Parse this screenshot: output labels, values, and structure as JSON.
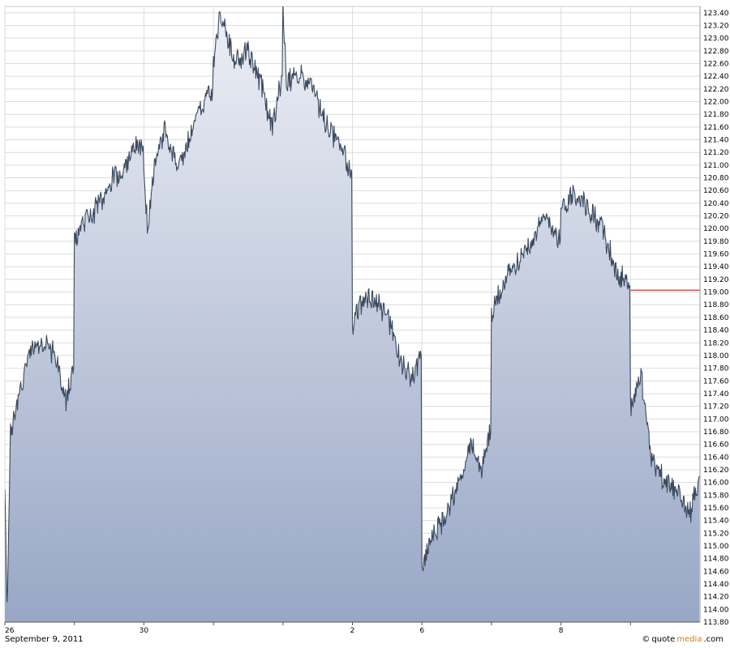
{
  "chart_data": {
    "type": "area",
    "title": "",
    "xlabel": "",
    "ylabel": "",
    "ylim": [
      113.8,
      123.5
    ],
    "y_ticks": [
      "123.40",
      "123.20",
      "123.00",
      "122.80",
      "122.60",
      "122.40",
      "122.20",
      "122.00",
      "121.80",
      "121.60",
      "121.40",
      "121.20",
      "121.00",
      "120.80",
      "120.60",
      "120.40",
      "120.20",
      "120.00",
      "119.80",
      "119.60",
      "119.40",
      "119.20",
      "119.00",
      "118.80",
      "118.60",
      "118.40",
      "118.20",
      "118.00",
      "117.80",
      "117.60",
      "117.40",
      "117.20",
      "117.00",
      "116.80",
      "116.60",
      "116.40",
      "116.20",
      "116.00",
      "115.80",
      "115.60",
      "115.40",
      "115.20",
      "115.00",
      "114.80",
      "114.60",
      "114.40",
      "114.20",
      "114.00",
      "113.80"
    ],
    "x_tick_labels": [
      "26",
      "",
      "30",
      "",
      "",
      "2",
      "6",
      "",
      "8",
      ""
    ],
    "x_tick_sessions": [
      0,
      1,
      2,
      3,
      4,
      5,
      6,
      7,
      8,
      9
    ],
    "sessions": 10,
    "reference_level": 119.03,
    "reference_color": "#c0392b",
    "fill_top_color": "#eef0f6",
    "fill_bottom_color": "#98a7c6",
    "line_color": "#3b4a5e",
    "grid": true,
    "series": [
      {
        "values": [
          [
            0.0,
            115.8
          ],
          [
            0.03,
            114.0
          ],
          [
            0.08,
            116.8
          ],
          [
            0.2,
            117.3
          ],
          [
            0.3,
            117.9
          ],
          [
            0.45,
            118.2
          ],
          [
            0.6,
            118.2
          ],
          [
            0.75,
            117.9
          ],
          [
            0.88,
            117.3
          ],
          [
            0.99,
            117.8
          ],
          [
            1.0,
            119.8
          ],
          [
            1.1,
            120.1
          ],
          [
            1.25,
            120.2
          ],
          [
            1.4,
            120.5
          ],
          [
            1.55,
            120.8
          ],
          [
            1.7,
            120.9
          ],
          [
            1.85,
            121.3
          ],
          [
            1.99,
            121.3
          ],
          [
            2.0,
            121.0
          ],
          [
            2.05,
            120.0
          ],
          [
            2.15,
            120.9
          ],
          [
            2.3,
            121.6
          ],
          [
            2.5,
            120.9
          ],
          [
            2.7,
            121.6
          ],
          [
            2.85,
            122.0
          ],
          [
            2.99,
            122.2
          ],
          [
            3.0,
            122.6
          ],
          [
            3.1,
            123.4
          ],
          [
            3.3,
            122.6
          ],
          [
            3.5,
            122.8
          ],
          [
            3.7,
            122.2
          ],
          [
            3.85,
            121.6
          ],
          [
            3.99,
            122.4
          ],
          [
            4.0,
            123.4
          ],
          [
            4.05,
            122.3
          ],
          [
            4.2,
            122.4
          ],
          [
            4.4,
            122.3
          ],
          [
            4.6,
            121.7
          ],
          [
            4.8,
            121.3
          ],
          [
            4.99,
            120.9
          ],
          [
            5.0,
            118.4
          ],
          [
            5.1,
            118.8
          ],
          [
            5.3,
            118.9
          ],
          [
            5.5,
            118.6
          ],
          [
            5.7,
            117.9
          ],
          [
            5.85,
            117.6
          ],
          [
            5.99,
            118.0
          ],
          [
            6.0,
            114.7
          ],
          [
            6.1,
            115.0
          ],
          [
            6.3,
            115.4
          ],
          [
            6.5,
            115.9
          ],
          [
            6.7,
            116.6
          ],
          [
            6.85,
            116.2
          ],
          [
            6.99,
            116.8
          ],
          [
            7.0,
            118.6
          ],
          [
            7.15,
            119.1
          ],
          [
            7.4,
            119.5
          ],
          [
            7.6,
            119.9
          ],
          [
            7.8,
            120.2
          ],
          [
            7.99,
            119.8
          ],
          [
            8.0,
            120.3
          ],
          [
            8.2,
            120.6
          ],
          [
            8.4,
            120.3
          ],
          [
            8.6,
            120.0
          ],
          [
            8.8,
            119.3
          ],
          [
            8.99,
            119.1
          ],
          [
            9.0,
            117.2
          ],
          [
            9.15,
            117.7
          ],
          [
            9.3,
            116.4
          ],
          [
            9.5,
            116.0
          ],
          [
            9.7,
            115.8
          ],
          [
            9.85,
            115.5
          ],
          [
            9.99,
            116.1
          ]
        ]
      }
    ]
  },
  "footer": {
    "date": "September 9, 2011",
    "brand_copy": "©",
    "brand_part1": "quote",
    "brand_part2": "media",
    "brand_part3": ".com"
  }
}
